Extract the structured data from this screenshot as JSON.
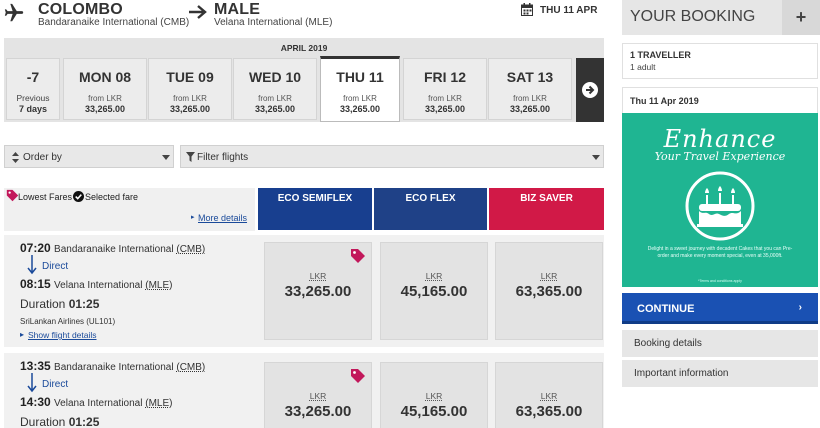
{
  "header": {
    "origin_city": "COLOMBO",
    "origin_airport": "Bandaranaike International (CMB)",
    "dest_city": "MALE",
    "dest_airport": "Velana International (MLE)",
    "date": "THU 11 APR"
  },
  "date_strip": {
    "month": "APRIL 2019",
    "previous": {
      "label": "-7",
      "line1": "Previous",
      "line2": "7 days"
    },
    "days": [
      {
        "label": "MON 08",
        "from": "from LKR",
        "price": "33,265.00",
        "selected": false
      },
      {
        "label": "TUE 09",
        "from": "from LKR",
        "price": "33,265.00",
        "selected": false
      },
      {
        "label": "WED 10",
        "from": "from LKR",
        "price": "33,265.00",
        "selected": false
      },
      {
        "label": "THU 11",
        "from": "from LKR",
        "price": "33,265.00",
        "selected": true
      },
      {
        "label": "FRI 12",
        "from": "from LKR",
        "price": "33,265.00",
        "selected": false
      },
      {
        "label": "SAT 13",
        "from": "from LKR",
        "price": "33,265.00",
        "selected": false
      }
    ]
  },
  "filters": {
    "order_by": "Order by",
    "filter_flights": "Filter flights"
  },
  "legend": {
    "lowest": "Lowest Fares",
    "selected": "Selected fare",
    "more": "More details"
  },
  "fare_types": [
    {
      "label": "ECO SEMIFLEX",
      "color": "#183f8f"
    },
    {
      "label": "ECO FLEX",
      "color": "#1f4187"
    },
    {
      "label": "BIZ SAVER",
      "color": "#d11947"
    }
  ],
  "flights": [
    {
      "dep_time": "07:20",
      "dep_airport": "Bandaranaike International",
      "dep_code": "(CMB)",
      "direct": "Direct",
      "arr_time": "08:15",
      "arr_airport": "Velana International",
      "arr_code": "(MLE)",
      "duration_label": "Duration",
      "duration": "01:25",
      "airline": "SriLankan Airlines (UL101)",
      "details": "Show flight details",
      "prices": [
        {
          "cur": "LKR",
          "amt": "33,265.00",
          "lowest": true
        },
        {
          "cur": "LKR",
          "amt": "45,165.00",
          "lowest": false
        },
        {
          "cur": "LKR",
          "amt": "63,365.00",
          "lowest": false
        }
      ]
    },
    {
      "dep_time": "13:35",
      "dep_airport": "Bandaranaike International",
      "dep_code": "(CMB)",
      "direct": "Direct",
      "arr_time": "14:30",
      "arr_airport": "Velana International",
      "arr_code": "(MLE)",
      "duration_label": "Duration",
      "duration": "01:25",
      "prices": [
        {
          "cur": "LKR",
          "amt": "33,265.00",
          "lowest": true
        },
        {
          "cur": "LKR",
          "amt": "45,165.00",
          "lowest": false
        },
        {
          "cur": "LKR",
          "amt": "63,365.00",
          "lowest": false
        }
      ]
    }
  ],
  "sidebar": {
    "title": "YOUR BOOKING",
    "plus": "+",
    "travellers": "1 TRAVELLER",
    "adults": "1 adult",
    "date": "Thu 11 Apr 2019",
    "promo": {
      "headline": "Enhance",
      "sub": "Your Travel Experience",
      "message": "Delight in a sweet journey with decadent Cakes that you can Pre-order and make every moment special, even at 35,000ft.",
      "fine": "*Terms and conditions apply",
      "color": "#1fb592"
    },
    "continue": "CONTINUE",
    "booking_details": "Booking details",
    "important_info": "Important information"
  },
  "colors": {
    "accent": "#1a51b3",
    "link": "#1a4a9a",
    "tag": "#c2185b"
  }
}
